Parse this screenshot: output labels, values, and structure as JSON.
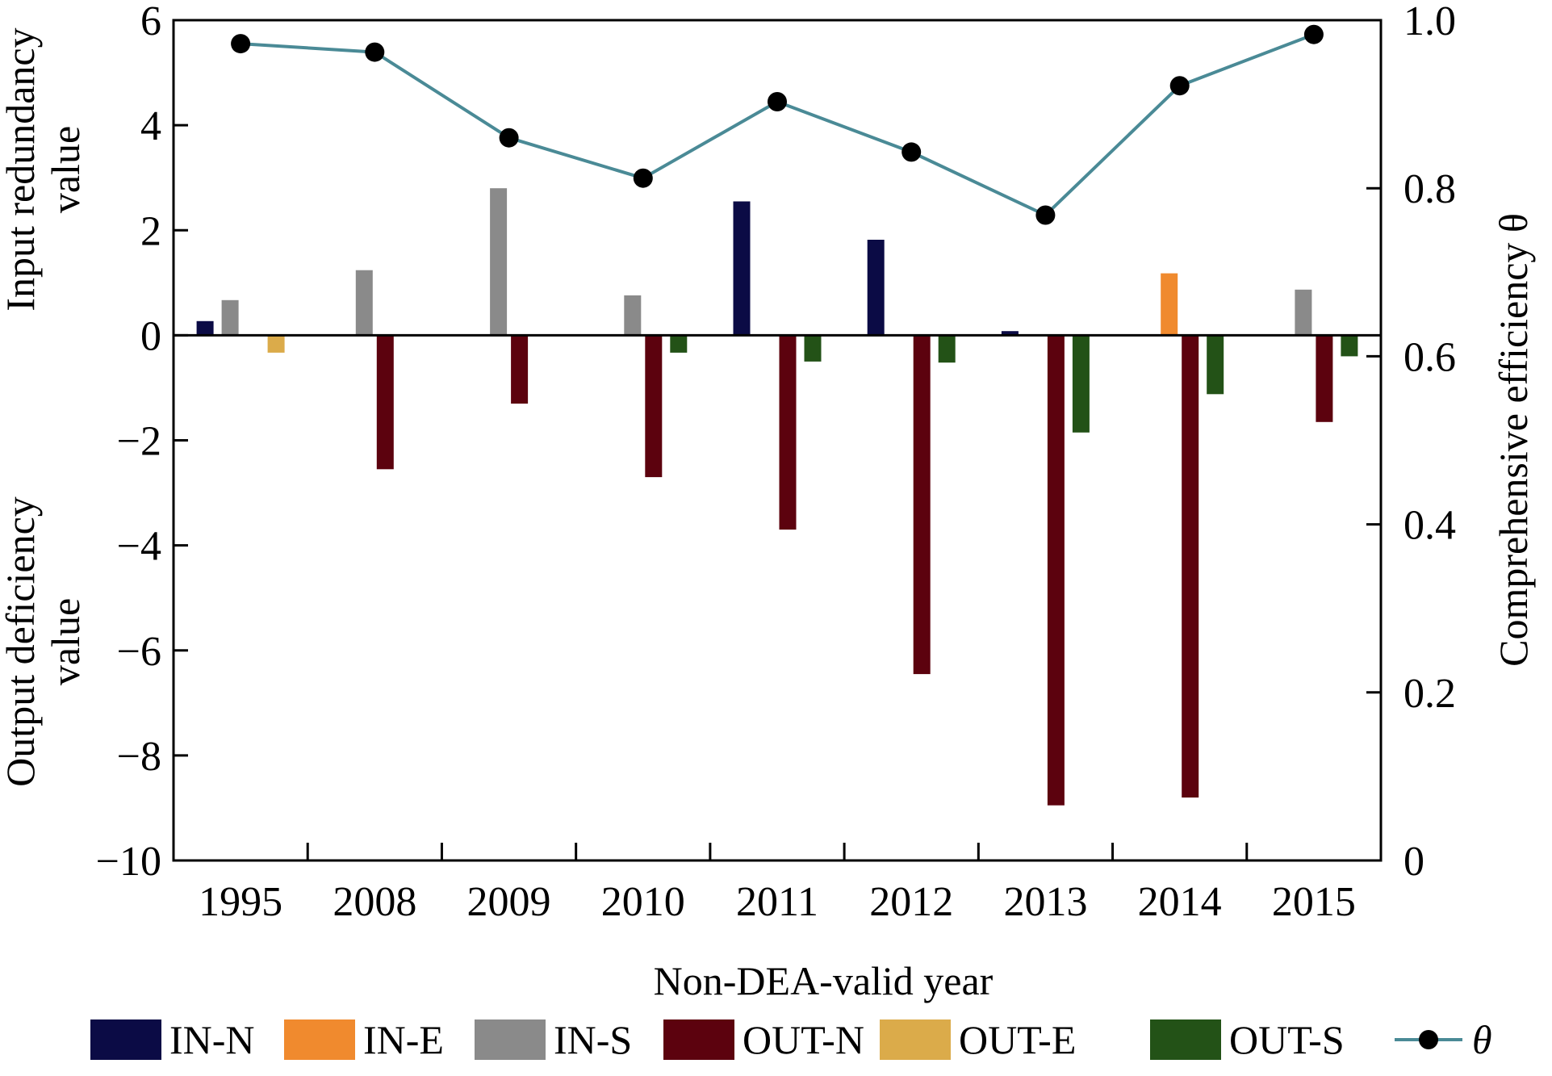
{
  "chart_data": {
    "type": "bar",
    "xlabel": "Non-DEA-valid year",
    "ylabel_left_top": "Input redundancy",
    "ylabel_left_top_2": "value",
    "ylabel_left_bottom": "Output deficiency",
    "ylabel_left_bottom_2": "value",
    "ylabel_right": "Comprehensive efficiency θ",
    "ylim_left": [
      -10,
      6
    ],
    "ylim_right": [
      0,
      1.0
    ],
    "left_ticks": [
      6,
      4,
      2,
      0,
      -2,
      -4,
      -6,
      -8,
      -10
    ],
    "left_tick_labels": [
      "6",
      "4",
      "2",
      "0",
      "−2",
      "−4",
      "−6",
      "−8",
      "−10"
    ],
    "right_ticks": [
      1.0,
      0.8,
      0.6,
      0.4,
      0.2,
      0
    ],
    "right_tick_labels": [
      "1.0",
      "0.8",
      "0.6",
      "0.4",
      "0.2",
      "0"
    ],
    "categories": [
      "1995",
      "2008",
      "2009",
      "2010",
      "2011",
      "2012",
      "2013",
      "2014",
      "2015"
    ],
    "series": [
      {
        "name": "IN-N",
        "color": "#0b0b45",
        "values": [
          0.27,
          0,
          0,
          0,
          2.55,
          1.82,
          0.08,
          0,
          0
        ]
      },
      {
        "name": "IN-E",
        "color": "#f08a2e",
        "values": [
          0,
          0,
          0,
          0,
          0,
          0,
          0,
          1.18,
          0
        ]
      },
      {
        "name": "IN-S",
        "color": "#8a8a8a",
        "values": [
          0.67,
          1.24,
          2.8,
          0.76,
          0,
          0,
          0,
          0,
          0.87
        ]
      },
      {
        "name": "OUT-N",
        "color": "#5c020e",
        "values": [
          0,
          -2.55,
          -1.3,
          -2.7,
          -3.7,
          -6.45,
          -8.95,
          -8.8,
          -1.65
        ]
      },
      {
        "name": "OUT-E",
        "color": "#dbab4a",
        "values": [
          -0.33,
          0,
          0,
          0,
          0,
          0,
          0,
          0,
          0
        ]
      },
      {
        "name": "OUT-S",
        "color": "#235217",
        "values": [
          0,
          0,
          0,
          -0.33,
          -0.5,
          -0.52,
          -1.85,
          -1.12,
          -0.4
        ]
      }
    ],
    "line_series": {
      "name": "θ",
      "axis": "right",
      "color": "#4a8a96",
      "values": [
        0.972,
        0.962,
        0.86,
        0.812,
        0.903,
        0.843,
        0.768,
        0.922,
        0.983
      ]
    },
    "legend_position": "bottom",
    "grid": false
  }
}
